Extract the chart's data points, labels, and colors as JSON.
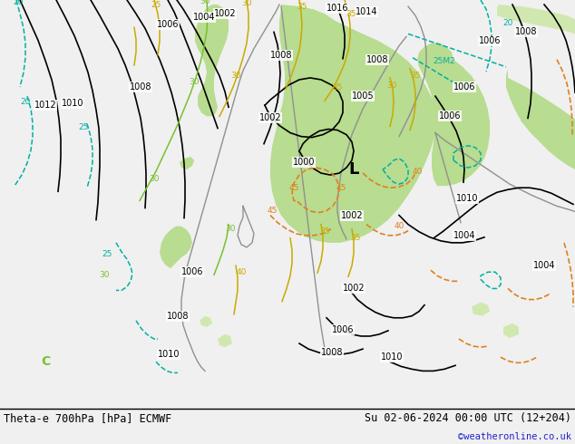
{
  "title_left": "Theta-e 700hPa [hPa] ECMWF",
  "title_right": "Su 02-06-2024 00:00 UTC (12+204)",
  "credit": "©weatheronline.co.uk",
  "bg_color": "#d8d8d8",
  "land_bg_color": "#e0e0e0",
  "green_fill_color": "#b8dc90",
  "light_green_fill": "#d0e8b0",
  "gray_land_color": "#c8c8c8",
  "pressure_line_color": "#000000",
  "theta_e_yellow_color": "#c8aa00",
  "theta_e_cyan_color": "#00b0a0",
  "theta_e_orange_color": "#e08020",
  "theta_e_green_color": "#78c030",
  "coast_color": "#909090",
  "fig_width": 6.34,
  "fig_height": 4.9,
  "bottom_bar_color": "#f0f0f0",
  "bottom_bar_height": 0.082
}
